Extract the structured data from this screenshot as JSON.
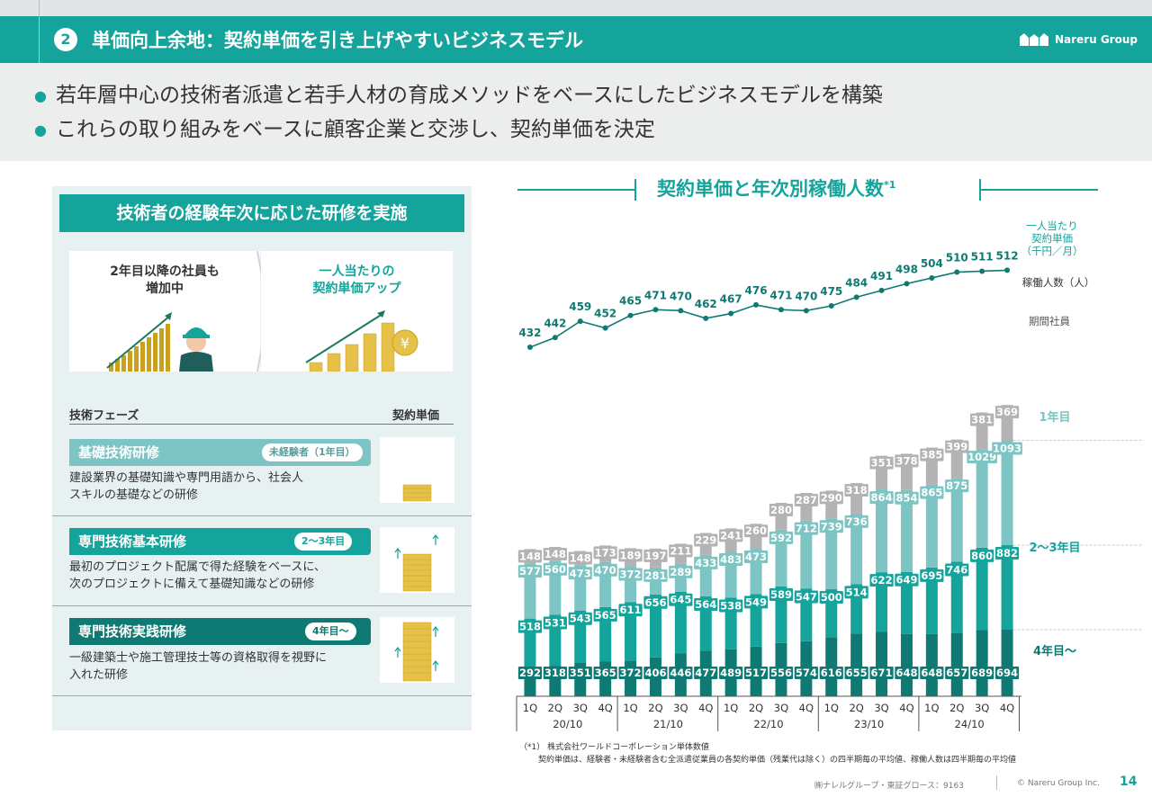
{
  "header": {
    "section_number": "2",
    "title": "単価向上余地：契約単価を引き上げやすいビジネスモデル",
    "logo_text": "Nareru Group"
  },
  "bullets": [
    "若年層中心の技術者派遣と若手人材の育成メソッドをベースにしたビジネスモデルを構築",
    "これらの取り組みをベースに顧客企業と交渉し、契約単価を決定"
  ],
  "left_panel": {
    "title": "技術者の経験年次に応じた研修を実施",
    "box1_lines": [
      "2年目以降の社員も",
      "増加中"
    ],
    "box2_lines": [
      "一人当たりの",
      "契約単価アップ"
    ],
    "yen_symbol": "¥",
    "col_phase": "技術フェーズ",
    "col_price": "契約単価",
    "phases": [
      {
        "name": "基礎技術研修",
        "badge": "未経験者（1年目）",
        "desc1": "建設業界の基礎知識や専門用語から、社会人",
        "desc2": "スキルの基礎などの研修"
      },
      {
        "name": "専門技術基本研修",
        "badge": "2～3年目",
        "desc1": "最初のプロジェクト配属で得た経験をベースに、",
        "desc2": "次のプロジェクトに備えて基礎知識などの研修"
      },
      {
        "name": "専門技術実践研修",
        "badge": "4年目～",
        "desc1": "一級建築士や施工管理技士等の資格取得を視野に",
        "desc2": "入れた研修"
      }
    ]
  },
  "chart_title": "契約単価と年次別稼働人数",
  "chart_title_note": "*1",
  "colors": {
    "teal": "#14a49c",
    "year4": "#0f7a73",
    "year23": "#14a49c",
    "year1": "#7dc4c4",
    "temp": "#b3b3b6",
    "line": "#0f7a73",
    "text_label": "#0f7a73"
  },
  "chart_data": {
    "type": "bar",
    "stacked": true,
    "categories": [
      "1Q",
      "2Q",
      "3Q",
      "4Q",
      "1Q",
      "2Q",
      "3Q",
      "4Q",
      "1Q",
      "2Q",
      "3Q",
      "4Q",
      "1Q",
      "2Q",
      "3Q",
      "4Q",
      "1Q",
      "2Q",
      "3Q",
      "4Q"
    ],
    "groups": [
      "20/10",
      "21/10",
      "22/10",
      "23/10",
      "24/10"
    ],
    "series": [
      {
        "name": "4年目～",
        "values": [
          292,
          318,
          351,
          365,
          372,
          406,
          446,
          477,
          489,
          517,
          556,
          574,
          616,
          655,
          671,
          648,
          648,
          657,
          689,
          694
        ]
      },
      {
        "name": "2～3年目",
        "values": [
          518,
          531,
          543,
          565,
          611,
          656,
          645,
          564,
          538,
          549,
          589,
          547,
          500,
          514,
          622,
          649,
          695,
          746,
          860,
          882
        ]
      },
      {
        "name": "1年目",
        "values": [
          577,
          560,
          473,
          470,
          372,
          281,
          289,
          433,
          483,
          473,
          592,
          712,
          739,
          736,
          864,
          854,
          865,
          875,
          1029,
          1093
        ]
      },
      {
        "name": "期間社員",
        "values": [
          148,
          148,
          148,
          173,
          189,
          197,
          211,
          229,
          241,
          260,
          280,
          287,
          290,
          318,
          351,
          378,
          385,
          399,
          381,
          369
        ]
      }
    ],
    "line_series": {
      "name": "一人当たり契約単価（千円／月）",
      "values": [
        432,
        442,
        459,
        452,
        465,
        471,
        470,
        462,
        467,
        476,
        471,
        470,
        475,
        484,
        491,
        498,
        504,
        510,
        511,
        512
      ]
    },
    "legend_line": [
      "一人当たり",
      "契約単価",
      "（千円／月）"
    ],
    "legend_people": "稼働人数（人）",
    "legend_temp": "期間社員"
  },
  "footnotes": [
    "（*1）  株式会社ワールドコーポレーション単体数値",
    "契約単価は、経験者・未経験者含む全派遣従業員の各契約単価（残業代は除く）の四半期毎の平均値、稼働人数は四半期毎の平均値"
  ],
  "footer": {
    "company": "㈱ナレルグループ・東証グロース：9163",
    "copyright": "© Nareru Group Inc.",
    "page": "14"
  }
}
